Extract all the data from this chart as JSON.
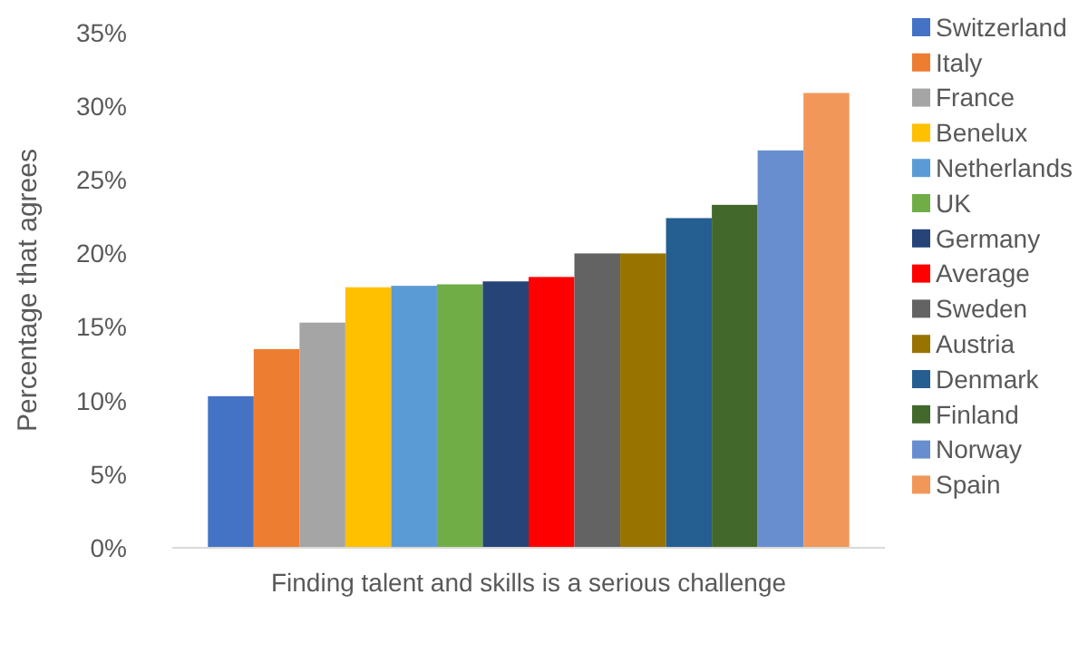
{
  "chart_data": {
    "type": "bar",
    "ylabel": "Percentage that agrees",
    "categories": [
      "Finding talent and skills is a serious challenge"
    ],
    "ylim": [
      0,
      35
    ],
    "yticks": [
      {
        "value": 0,
        "label": "0%"
      },
      {
        "value": 5,
        "label": "5%"
      },
      {
        "value": 10,
        "label": "10%"
      },
      {
        "value": 15,
        "label": "15%"
      },
      {
        "value": 20,
        "label": "20%"
      },
      {
        "value": 25,
        "label": "25%"
      },
      {
        "value": 30,
        "label": "30%"
      },
      {
        "value": 35,
        "label": "35%"
      }
    ],
    "legend": "right",
    "grid": false,
    "series": [
      {
        "name": "Switzerland",
        "color": "#4472c4",
        "values": [
          10.3
        ]
      },
      {
        "name": "Italy",
        "color": "#ed7d31",
        "values": [
          13.5
        ]
      },
      {
        "name": "France",
        "color": "#a5a5a5",
        "values": [
          15.3
        ]
      },
      {
        "name": "Benelux",
        "color": "#ffc000",
        "values": [
          17.7
        ]
      },
      {
        "name": "Netherlands",
        "color": "#5b9bd5",
        "values": [
          17.8
        ]
      },
      {
        "name": "UK",
        "color": "#70ad47",
        "values": [
          17.9
        ]
      },
      {
        "name": "Germany",
        "color": "#264478",
        "values": [
          18.1
        ]
      },
      {
        "name": "Average",
        "color": "#ff0000",
        "values": [
          18.4
        ]
      },
      {
        "name": "Sweden",
        "color": "#636363",
        "values": [
          20.0
        ]
      },
      {
        "name": "Austria",
        "color": "#997300",
        "values": [
          20.0
        ]
      },
      {
        "name": "Denmark",
        "color": "#255e91",
        "values": [
          22.4
        ]
      },
      {
        "name": "Finland",
        "color": "#43682b",
        "values": [
          23.3
        ]
      },
      {
        "name": "Norway",
        "color": "#698ed0",
        "values": [
          27.0
        ]
      },
      {
        "name": "Spain",
        "color": "#f1975a",
        "values": [
          30.9
        ]
      }
    ]
  }
}
